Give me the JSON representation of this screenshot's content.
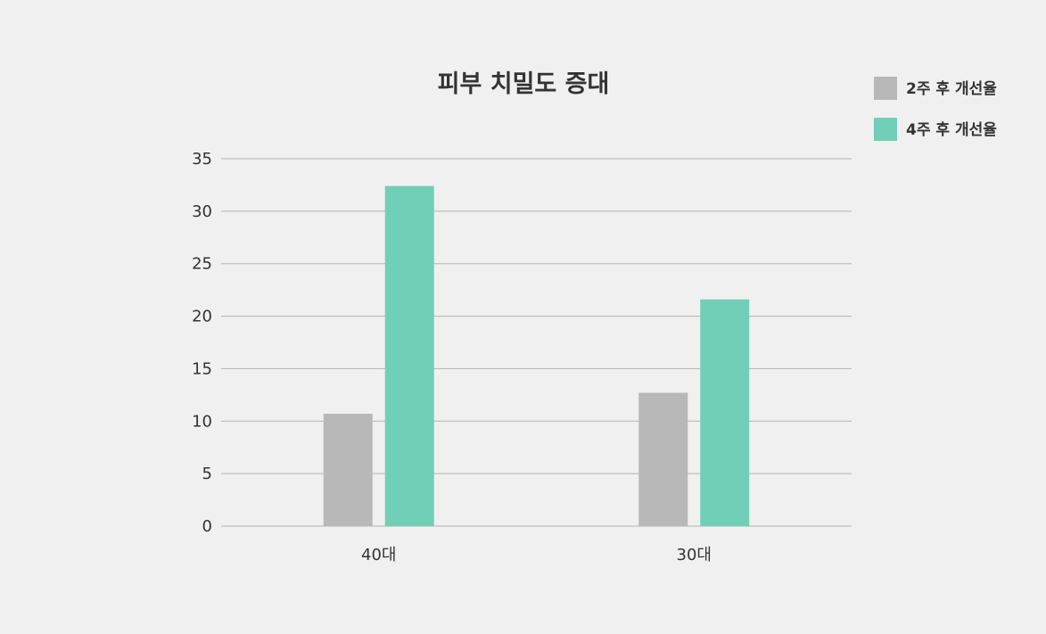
{
  "chart_data": {
    "type": "bar",
    "title": "피부 치밀도 증대",
    "categories": [
      "40대",
      "30대"
    ],
    "series": [
      {
        "name": "2주 후 개선율",
        "color": "#b8b8b8",
        "values": [
          10.7,
          12.7
        ]
      },
      {
        "name": "4주 후 개선율",
        "color": "#71cfb7",
        "values": [
          32.4,
          21.6
        ]
      }
    ],
    "ylim": [
      0,
      35
    ],
    "yticks": [
      0,
      5,
      10,
      15,
      20,
      25,
      30,
      35
    ],
    "xlabel": "",
    "ylabel": "",
    "grid": true,
    "legend_position": "top-right"
  }
}
